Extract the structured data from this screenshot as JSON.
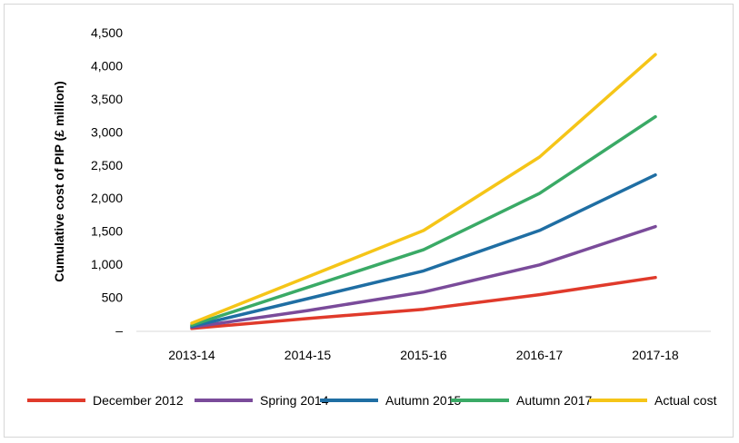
{
  "chart_data": {
    "type": "line",
    "title": "",
    "xlabel": "",
    "ylabel": "Cumulative cost of PIP (£ million)",
    "categories": [
      "2013-14",
      "2014-15",
      "2015-16",
      "2016-17",
      "2017-18"
    ],
    "ylim": [
      0,
      4500
    ],
    "yticks": [
      0,
      500,
      1000,
      1500,
      2000,
      2500,
      3000,
      3500,
      4000,
      4500
    ],
    "ytick_labels": [
      "–",
      "500",
      "1,000",
      "1,500",
      "2,000",
      "2,500",
      "3,000",
      "3,500",
      "4,000",
      "4,500"
    ],
    "grid": false,
    "legend_position": "bottom",
    "series": [
      {
        "name": "December 2012",
        "color": "#e03a2b",
        "values": [
          30,
          180,
          320,
          540,
          800
        ]
      },
      {
        "name": "Spring 2014",
        "color": "#7a4b9a",
        "values": [
          50,
          300,
          580,
          990,
          1570
        ]
      },
      {
        "name": "Autumn 2015",
        "color": "#1f6ea3",
        "values": [
          60,
          480,
          900,
          1510,
          2350
        ]
      },
      {
        "name": "Autumn 2017",
        "color": "#3aaa66",
        "values": [
          80,
          650,
          1220,
          2070,
          3230
        ]
      },
      {
        "name": "Actual cost",
        "color": "#f5c518",
        "values": [
          110,
          810,
          1510,
          2620,
          4170
        ]
      }
    ]
  }
}
